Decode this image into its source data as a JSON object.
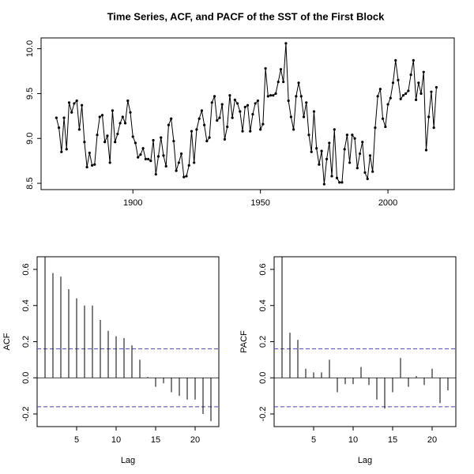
{
  "title": "Time Series, ACF, and PACF of the SST of the First Block",
  "chart_data": [
    {
      "type": "line",
      "color": "#000000",
      "x": [
        1870,
        1871,
        1872,
        1873,
        1874,
        1875,
        1876,
        1877,
        1878,
        1879,
        1880,
        1881,
        1882,
        1883,
        1884,
        1885,
        1886,
        1887,
        1888,
        1889,
        1890,
        1891,
        1892,
        1893,
        1894,
        1895,
        1896,
        1897,
        1898,
        1899,
        1900,
        1901,
        1902,
        1903,
        1904,
        1905,
        1906,
        1907,
        1908,
        1909,
        1910,
        1911,
        1912,
        1913,
        1914,
        1915,
        1916,
        1917,
        1918,
        1919,
        1920,
        1921,
        1922,
        1923,
        1924,
        1925,
        1926,
        1927,
        1928,
        1929,
        1930,
        1931,
        1932,
        1933,
        1934,
        1935,
        1936,
        1937,
        1938,
        1939,
        1940,
        1941,
        1942,
        1943,
        1944,
        1945,
        1946,
        1947,
        1948,
        1949,
        1950,
        1951,
        1952,
        1953,
        1954,
        1955,
        1956,
        1957,
        1958,
        1959,
        1960,
        1961,
        1962,
        1963,
        1964,
        1965,
        1966,
        1967,
        1968,
        1969,
        1970,
        1971,
        1972,
        1973,
        1974,
        1975,
        1976,
        1977,
        1978,
        1979,
        1980,
        1981,
        1982,
        1983,
        1984,
        1985,
        1986,
        1987,
        1988,
        1989,
        1990,
        1991,
        1992,
        1993,
        1994,
        1995,
        1996,
        1997,
        1998,
        1999,
        2000,
        2001,
        2002,
        2003,
        2004,
        2005,
        2006,
        2007,
        2008,
        2009,
        2010,
        2011,
        2012,
        2013,
        2014,
        2015,
        2016,
        2017,
        2018,
        2019
      ],
      "values": [
        9.23,
        9.12,
        8.85,
        9.23,
        8.88,
        9.4,
        9.29,
        9.39,
        9.42,
        9.1,
        9.37,
        8.96,
        8.68,
        8.84,
        8.7,
        8.71,
        9.04,
        9.24,
        9.26,
        8.96,
        9.03,
        8.73,
        9.31,
        8.96,
        9.05,
        9.17,
        9.24,
        9.17,
        9.42,
        9.29,
        9.02,
        8.95,
        8.79,
        8.82,
        8.89,
        8.77,
        8.77,
        8.75,
        8.98,
        8.6,
        8.8,
        9.01,
        8.81,
        8.69,
        9.15,
        9.22,
        8.97,
        8.64,
        8.73,
        8.83,
        8.57,
        8.58,
        8.7,
        9.08,
        8.73,
        9.1,
        9.22,
        9.31,
        9.15,
        8.97,
        9.01,
        9.4,
        9.47,
        9.2,
        9.23,
        9.38,
        8.99,
        9.13,
        9.48,
        9.23,
        9.43,
        9.39,
        9.3,
        9.08,
        9.35,
        9.37,
        9.08,
        9.27,
        9.39,
        9.42,
        9.1,
        9.16,
        9.78,
        9.47,
        9.48,
        9.48,
        9.5,
        9.63,
        9.77,
        9.63,
        10.06,
        9.42,
        9.24,
        9.1,
        9.47,
        9.62,
        9.47,
        9.24,
        9.4,
        9.04,
        8.85,
        9.3,
        8.89,
        8.71,
        8.86,
        8.49,
        8.77,
        8.95,
        8.58,
        9.1,
        8.56,
        8.51,
        8.51,
        8.88,
        9.04,
        8.73,
        9.04,
        9.0,
        8.67,
        8.83,
        8.96,
        8.62,
        8.55,
        8.81,
        8.63,
        9.12,
        9.47,
        9.55,
        9.22,
        9.13,
        9.38,
        9.45,
        9.62,
        9.87,
        9.65,
        9.44,
        9.48,
        9.5,
        9.53,
        9.71,
        9.87,
        9.43,
        9.62,
        9.5,
        9.74,
        8.87,
        9.24,
        9.52,
        9.12,
        9.57
      ],
      "xlim": [
        1864,
        2026
      ],
      "xticks": [
        1900,
        1950,
        2000
      ],
      "ylim": [
        8.43,
        10.12
      ],
      "yticks": [
        8.5,
        {
          "value": 9,
          "label": "9.0"
        },
        9.5,
        {
          "value": 10,
          "label": "10.0"
        }
      ]
    },
    {
      "type": "stem",
      "color": "#000000",
      "xlabel": "Lag",
      "ylabel": "ACF",
      "x": [
        1,
        2,
        3,
        4,
        5,
        6,
        7,
        8,
        9,
        10,
        11,
        12,
        13,
        14,
        15,
        16,
        17,
        18,
        19,
        20,
        21,
        22
      ],
      "values": [
        0.67,
        0.58,
        0.56,
        0.49,
        0.44,
        0.4,
        0.4,
        0.32,
        0.26,
        0.23,
        0.22,
        0.18,
        0.1,
        0.005,
        -0.05,
        -0.03,
        -0.08,
        -0.1,
        -0.12,
        -0.12,
        -0.2,
        -0.24
      ],
      "conf_limits": [
        0.16,
        -0.16
      ],
      "conf_color": "#4444cc",
      "xlim": [
        0,
        23
      ],
      "xticks": [
        5,
        10,
        15,
        20
      ],
      "ylim": [
        -0.27,
        0.67
      ],
      "yticks": [
        -0.2,
        {
          "value": 0,
          "label": "0.0"
        },
        0.2,
        0.4,
        0.6
      ]
    },
    {
      "type": "stem",
      "color": "#000000",
      "xlabel": "Lag",
      "ylabel": "PACF",
      "x": [
        1,
        2,
        3,
        4,
        5,
        6,
        7,
        8,
        9,
        10,
        11,
        12,
        13,
        14,
        15,
        16,
        17,
        18,
        19,
        20,
        21,
        22
      ],
      "values": [
        0.67,
        0.25,
        0.21,
        0.05,
        0.03,
        0.03,
        0.1,
        -0.08,
        -0.035,
        -0.035,
        0.06,
        -0.04,
        -0.12,
        -0.17,
        -0.08,
        0.11,
        -0.05,
        0.01,
        -0.04,
        0.05,
        -0.14,
        -0.07
      ],
      "conf_limits": [
        0.16,
        -0.16
      ],
      "conf_color": "#4444cc",
      "xlim": [
        0,
        23
      ],
      "xticks": [
        5,
        10,
        15,
        20
      ],
      "ylim": [
        -0.27,
        0.67
      ],
      "yticks": [
        -0.2,
        {
          "value": 0,
          "label": "0.0"
        },
        0.2,
        0.4,
        0.6
      ]
    }
  ]
}
